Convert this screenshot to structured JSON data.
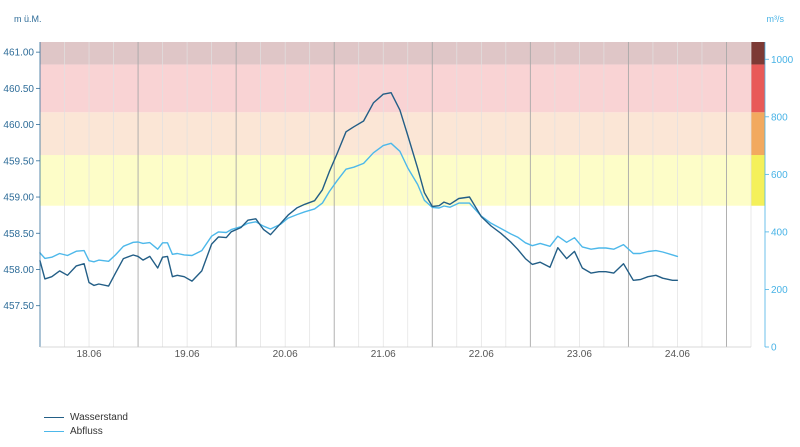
{
  "chart_data": {
    "type": "line",
    "y_left_title": "m ü.M.",
    "y_right_title": "m³/s",
    "y_left_ticks": [
      "457.50",
      "458.00",
      "458.50",
      "459.00",
      "459.50",
      "460.00",
      "460.50",
      "461.00"
    ],
    "y_left_values": [
      457.5,
      458.0,
      458.5,
      459.0,
      459.5,
      460.0,
      460.5,
      461.0
    ],
    "y_right_ticks": [
      "0",
      "200",
      "400",
      "600",
      "800",
      "1000"
    ],
    "y_right_values": [
      0,
      200,
      400,
      600,
      800,
      1000
    ],
    "x_ticks": [
      "18.06",
      "19.06",
      "20.06",
      "21.06",
      "22.06",
      "23.06",
      "24.06"
    ],
    "x_tick_days": [
      18,
      19,
      20,
      21,
      22,
      23,
      24
    ],
    "x_range_days": [
      17.5,
      24.75
    ],
    "y_left_range": [
      456.93,
      461.14
    ],
    "y_right_range": [
      0,
      1060
    ],
    "danger_bands_left": [
      {
        "from": 458.88,
        "to": 459.58,
        "color": "#fdfdc8",
        "scale_color": "#f4f05a"
      },
      {
        "from": 459.58,
        "to": 460.17,
        "color": "#fbe6d6",
        "scale_color": "#f2a95f"
      },
      {
        "from": 460.17,
        "to": 460.83,
        "color": "#f9d3d4",
        "scale_color": "#e85a58"
      },
      {
        "from": 460.83,
        "to": 461.14,
        "color": "#dfc6c7",
        "scale_color": "#7c3a35"
      }
    ],
    "series": [
      {
        "name": "Wasserstand",
        "axis": "left",
        "color": "#235e86",
        "x": [
          17.5,
          17.55,
          17.62,
          17.7,
          17.78,
          17.87,
          17.95,
          18.0,
          18.05,
          18.1,
          18.2,
          18.27,
          18.35,
          18.45,
          18.5,
          18.55,
          18.62,
          18.7,
          18.75,
          18.8,
          18.85,
          18.9,
          18.97,
          19.05,
          19.15,
          19.25,
          19.32,
          19.4,
          19.45,
          19.55,
          19.62,
          19.7,
          19.78,
          19.85,
          19.95,
          20.03,
          20.12,
          20.2,
          20.3,
          20.38,
          20.45,
          20.53,
          20.62,
          20.7,
          20.8,
          20.9,
          21.0,
          21.08,
          21.17,
          21.25,
          21.35,
          21.42,
          21.5,
          21.57,
          21.62,
          21.68,
          21.77,
          21.88,
          22.0,
          22.1,
          22.2,
          22.3,
          22.37,
          22.45,
          22.52,
          22.6,
          22.7,
          22.78,
          22.87,
          22.95,
          23.03,
          23.12,
          23.2,
          23.27,
          23.35,
          23.45,
          23.55,
          23.62,
          23.7,
          23.78,
          23.85,
          23.95,
          24.0
        ],
        "values": [
          458.12,
          457.87,
          457.9,
          457.98,
          457.92,
          458.05,
          458.08,
          457.82,
          457.78,
          457.8,
          457.77,
          457.95,
          458.15,
          458.2,
          458.18,
          458.13,
          458.18,
          458.02,
          458.17,
          458.18,
          457.9,
          457.92,
          457.9,
          457.84,
          457.98,
          458.35,
          458.45,
          458.44,
          458.52,
          458.58,
          458.68,
          458.7,
          458.55,
          458.48,
          458.63,
          458.75,
          458.85,
          458.9,
          458.95,
          459.1,
          459.35,
          459.6,
          459.9,
          459.97,
          460.05,
          460.3,
          460.42,
          460.44,
          460.2,
          459.85,
          459.4,
          459.06,
          458.87,
          458.88,
          458.93,
          458.9,
          458.98,
          459.0,
          458.73,
          458.6,
          458.5,
          458.38,
          458.28,
          458.15,
          458.07,
          458.1,
          458.03,
          458.3,
          458.15,
          458.25,
          458.02,
          457.95,
          457.97,
          457.97,
          457.95,
          458.08,
          457.85,
          457.86,
          457.9,
          457.92,
          457.88,
          457.85,
          457.85
        ]
      },
      {
        "name": "Abfluss",
        "axis": "right",
        "color": "#4db8ea",
        "x": [
          17.5,
          17.55,
          17.62,
          17.7,
          17.78,
          17.87,
          17.95,
          18.0,
          18.05,
          18.1,
          18.2,
          18.27,
          18.35,
          18.45,
          18.5,
          18.55,
          18.62,
          18.7,
          18.75,
          18.8,
          18.85,
          18.9,
          18.97,
          19.05,
          19.15,
          19.25,
          19.32,
          19.4,
          19.45,
          19.55,
          19.62,
          19.7,
          19.78,
          19.85,
          19.95,
          20.03,
          20.12,
          20.2,
          20.3,
          20.38,
          20.45,
          20.53,
          20.62,
          20.7,
          20.8,
          20.9,
          21.0,
          21.08,
          21.17,
          21.25,
          21.35,
          21.42,
          21.5,
          21.57,
          21.62,
          21.68,
          21.77,
          21.88,
          22.0,
          22.1,
          22.2,
          22.3,
          22.37,
          22.45,
          22.52,
          22.6,
          22.7,
          22.78,
          22.87,
          22.95,
          23.03,
          23.12,
          23.2,
          23.27,
          23.35,
          23.45,
          23.55,
          23.62,
          23.7,
          23.78,
          23.85,
          23.95,
          24.0
        ],
        "values": [
          327,
          308,
          312,
          325,
          318,
          333,
          335,
          300,
          296,
          302,
          298,
          320,
          350,
          364,
          365,
          360,
          363,
          340,
          362,
          362,
          322,
          325,
          320,
          318,
          335,
          385,
          400,
          398,
          408,
          418,
          430,
          435,
          420,
          410,
          426,
          448,
          460,
          470,
          480,
          500,
          540,
          578,
          618,
          625,
          638,
          675,
          700,
          708,
          680,
          622,
          565,
          510,
          485,
          483,
          490,
          486,
          500,
          500,
          455,
          430,
          412,
          393,
          382,
          362,
          352,
          360,
          350,
          385,
          364,
          380,
          348,
          340,
          344,
          344,
          340,
          356,
          325,
          325,
          332,
          335,
          330,
          320,
          315
        ]
      }
    ],
    "legend": [
      "Wasserstand",
      "Abfluss"
    ]
  }
}
